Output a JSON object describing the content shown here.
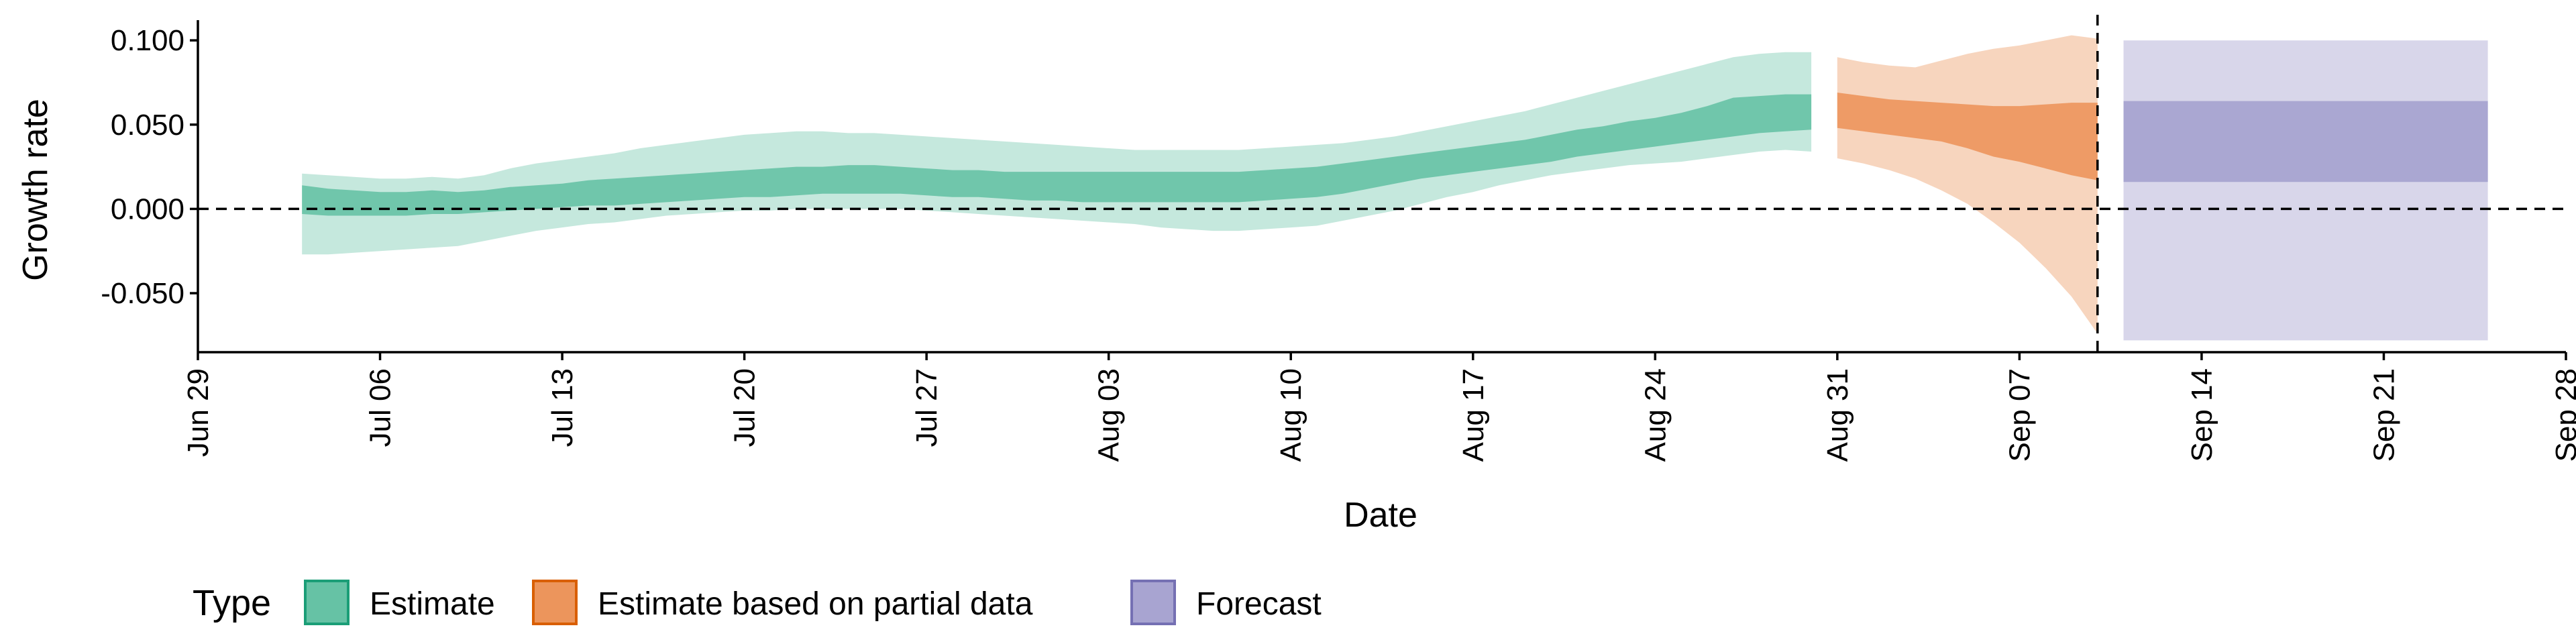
{
  "chart_data": {
    "type": "area",
    "xlabel": "Date",
    "ylabel": "Growth rate",
    "x_axis": {
      "type": "date",
      "range": [
        "2020-06-29",
        "2020-09-28"
      ],
      "ticks": [
        {
          "date": "2020-06-29",
          "label": "Jun 29"
        },
        {
          "date": "2020-07-06",
          "label": "Jul 06"
        },
        {
          "date": "2020-07-13",
          "label": "Jul 13"
        },
        {
          "date": "2020-07-20",
          "label": "Jul 20"
        },
        {
          "date": "2020-07-27",
          "label": "Jul 27"
        },
        {
          "date": "2020-08-03",
          "label": "Aug 03"
        },
        {
          "date": "2020-08-10",
          "label": "Aug 10"
        },
        {
          "date": "2020-08-17",
          "label": "Aug 17"
        },
        {
          "date": "2020-08-24",
          "label": "Aug 24"
        },
        {
          "date": "2020-08-31",
          "label": "Aug 31"
        },
        {
          "date": "2020-09-07",
          "label": "Sep 07"
        },
        {
          "date": "2020-09-14",
          "label": "Sep 14"
        },
        {
          "date": "2020-09-21",
          "label": "Sep 21"
        },
        {
          "date": "2020-09-28",
          "label": "Sep 28"
        }
      ]
    },
    "y_axis": {
      "range": [
        -0.085,
        0.112
      ],
      "ticks": [
        {
          "value": -0.05,
          "label": "-0.050"
        },
        {
          "value": 0.0,
          "label": "0.000"
        },
        {
          "value": 0.05,
          "label": "0.050"
        },
        {
          "value": 0.1,
          "label": "0.100"
        }
      ]
    },
    "reference_lines": [
      {
        "orientation": "horizontal",
        "value": 0.0,
        "style": "dashed"
      },
      {
        "orientation": "vertical",
        "date": "2020-09-10",
        "style": "dashed"
      }
    ],
    "legend": {
      "title": "Type",
      "position": "bottom",
      "entries": [
        {
          "label": "Estimate",
          "color": "#66c2a5",
          "border": "#1b9e77"
        },
        {
          "label": "Estimate based on partial data",
          "color": "#ec955c",
          "border": "#d95f02"
        },
        {
          "label": "Forecast",
          "color": "#a8a4d1",
          "border": "#7570b3"
        }
      ]
    },
    "series": [
      {
        "name": "Estimate",
        "color": "#66c2a5",
        "outer_alpha": 0.38,
        "inner_alpha": 0.9,
        "points": [
          {
            "date": "2020-07-03",
            "lo90": -0.027,
            "lo50": -0.003,
            "hi50": 0.014,
            "hi90": 0.021
          },
          {
            "date": "2020-07-04",
            "lo90": -0.027,
            "lo50": -0.004,
            "hi50": 0.012,
            "hi90": 0.02
          },
          {
            "date": "2020-07-05",
            "lo90": -0.026,
            "lo50": -0.004,
            "hi50": 0.011,
            "hi90": 0.019
          },
          {
            "date": "2020-07-06",
            "lo90": -0.025,
            "lo50": -0.004,
            "hi50": 0.01,
            "hi90": 0.018
          },
          {
            "date": "2020-07-07",
            "lo90": -0.024,
            "lo50": -0.004,
            "hi50": 0.01,
            "hi90": 0.018
          },
          {
            "date": "2020-07-08",
            "lo90": -0.023,
            "lo50": -0.003,
            "hi50": 0.011,
            "hi90": 0.019
          },
          {
            "date": "2020-07-09",
            "lo90": -0.022,
            "lo50": -0.003,
            "hi50": 0.01,
            "hi90": 0.018
          },
          {
            "date": "2020-07-10",
            "lo90": -0.019,
            "lo50": -0.002,
            "hi50": 0.011,
            "hi90": 0.02
          },
          {
            "date": "2020-07-11",
            "lo90": -0.016,
            "lo50": -0.001,
            "hi50": 0.013,
            "hi90": 0.024
          },
          {
            "date": "2020-07-12",
            "lo90": -0.013,
            "lo50": 0.0,
            "hi50": 0.014,
            "hi90": 0.027
          },
          {
            "date": "2020-07-13",
            "lo90": -0.011,
            "lo50": 0.001,
            "hi50": 0.015,
            "hi90": 0.029
          },
          {
            "date": "2020-07-14",
            "lo90": -0.009,
            "lo50": 0.002,
            "hi50": 0.017,
            "hi90": 0.031
          },
          {
            "date": "2020-07-15",
            "lo90": -0.008,
            "lo50": 0.002,
            "hi50": 0.018,
            "hi90": 0.033
          },
          {
            "date": "2020-07-16",
            "lo90": -0.006,
            "lo50": 0.003,
            "hi50": 0.019,
            "hi90": 0.036
          },
          {
            "date": "2020-07-17",
            "lo90": -0.004,
            "lo50": 0.004,
            "hi50": 0.02,
            "hi90": 0.038
          },
          {
            "date": "2020-07-18",
            "lo90": -0.003,
            "lo50": 0.005,
            "hi50": 0.021,
            "hi90": 0.04
          },
          {
            "date": "2020-07-19",
            "lo90": -0.002,
            "lo50": 0.006,
            "hi50": 0.022,
            "hi90": 0.042
          },
          {
            "date": "2020-07-20",
            "lo90": -0.001,
            "lo50": 0.007,
            "hi50": 0.023,
            "hi90": 0.044
          },
          {
            "date": "2020-07-21",
            "lo90": -0.001,
            "lo50": 0.007,
            "hi50": 0.024,
            "hi90": 0.045
          },
          {
            "date": "2020-07-22",
            "lo90": 0.0,
            "lo50": 0.008,
            "hi50": 0.025,
            "hi90": 0.046
          },
          {
            "date": "2020-07-23",
            "lo90": 0.0,
            "lo50": 0.009,
            "hi50": 0.025,
            "hi90": 0.046
          },
          {
            "date": "2020-07-24",
            "lo90": 0.0,
            "lo50": 0.009,
            "hi50": 0.026,
            "hi90": 0.045
          },
          {
            "date": "2020-07-25",
            "lo90": 0.0,
            "lo50": 0.009,
            "hi50": 0.026,
            "hi90": 0.045
          },
          {
            "date": "2020-07-26",
            "lo90": 0.0,
            "lo50": 0.009,
            "hi50": 0.025,
            "hi90": 0.044
          },
          {
            "date": "2020-07-27",
            "lo90": -0.001,
            "lo50": 0.008,
            "hi50": 0.024,
            "hi90": 0.043
          },
          {
            "date": "2020-07-28",
            "lo90": -0.002,
            "lo50": 0.007,
            "hi50": 0.023,
            "hi90": 0.042
          },
          {
            "date": "2020-07-29",
            "lo90": -0.003,
            "lo50": 0.007,
            "hi50": 0.023,
            "hi90": 0.041
          },
          {
            "date": "2020-07-30",
            "lo90": -0.004,
            "lo50": 0.006,
            "hi50": 0.022,
            "hi90": 0.04
          },
          {
            "date": "2020-07-31",
            "lo90": -0.005,
            "lo50": 0.005,
            "hi50": 0.022,
            "hi90": 0.039
          },
          {
            "date": "2020-08-01",
            "lo90": -0.006,
            "lo50": 0.005,
            "hi50": 0.022,
            "hi90": 0.038
          },
          {
            "date": "2020-08-02",
            "lo90": -0.007,
            "lo50": 0.004,
            "hi50": 0.022,
            "hi90": 0.037
          },
          {
            "date": "2020-08-03",
            "lo90": -0.008,
            "lo50": 0.004,
            "hi50": 0.022,
            "hi90": 0.036
          },
          {
            "date": "2020-08-04",
            "lo90": -0.009,
            "lo50": 0.004,
            "hi50": 0.022,
            "hi90": 0.035
          },
          {
            "date": "2020-08-05",
            "lo90": -0.011,
            "lo50": 0.004,
            "hi50": 0.022,
            "hi90": 0.035
          },
          {
            "date": "2020-08-06",
            "lo90": -0.012,
            "lo50": 0.004,
            "hi50": 0.022,
            "hi90": 0.035
          },
          {
            "date": "2020-08-07",
            "lo90": -0.013,
            "lo50": 0.004,
            "hi50": 0.022,
            "hi90": 0.035
          },
          {
            "date": "2020-08-08",
            "lo90": -0.013,
            "lo50": 0.004,
            "hi50": 0.022,
            "hi90": 0.035
          },
          {
            "date": "2020-08-09",
            "lo90": -0.012,
            "lo50": 0.005,
            "hi50": 0.023,
            "hi90": 0.036
          },
          {
            "date": "2020-08-10",
            "lo90": -0.011,
            "lo50": 0.006,
            "hi50": 0.024,
            "hi90": 0.037
          },
          {
            "date": "2020-08-11",
            "lo90": -0.01,
            "lo50": 0.007,
            "hi50": 0.025,
            "hi90": 0.038
          },
          {
            "date": "2020-08-12",
            "lo90": -0.007,
            "lo50": 0.009,
            "hi50": 0.027,
            "hi90": 0.039
          },
          {
            "date": "2020-08-13",
            "lo90": -0.004,
            "lo50": 0.012,
            "hi50": 0.029,
            "hi90": 0.041
          },
          {
            "date": "2020-08-14",
            "lo90": -0.001,
            "lo50": 0.015,
            "hi50": 0.031,
            "hi90": 0.043
          },
          {
            "date": "2020-08-15",
            "lo90": 0.003,
            "lo50": 0.018,
            "hi50": 0.033,
            "hi90": 0.046
          },
          {
            "date": "2020-08-16",
            "lo90": 0.007,
            "lo50": 0.02,
            "hi50": 0.035,
            "hi90": 0.049
          },
          {
            "date": "2020-08-17",
            "lo90": 0.01,
            "lo50": 0.022,
            "hi50": 0.037,
            "hi90": 0.052
          },
          {
            "date": "2020-08-18",
            "lo90": 0.014,
            "lo50": 0.024,
            "hi50": 0.039,
            "hi90": 0.055
          },
          {
            "date": "2020-08-19",
            "lo90": 0.017,
            "lo50": 0.026,
            "hi50": 0.041,
            "hi90": 0.058
          },
          {
            "date": "2020-08-20",
            "lo90": 0.02,
            "lo50": 0.028,
            "hi50": 0.044,
            "hi90": 0.062
          },
          {
            "date": "2020-08-21",
            "lo90": 0.022,
            "lo50": 0.031,
            "hi50": 0.047,
            "hi90": 0.066
          },
          {
            "date": "2020-08-22",
            "lo90": 0.024,
            "lo50": 0.033,
            "hi50": 0.049,
            "hi90": 0.07
          },
          {
            "date": "2020-08-23",
            "lo90": 0.026,
            "lo50": 0.035,
            "hi50": 0.052,
            "hi90": 0.074
          },
          {
            "date": "2020-08-24",
            "lo90": 0.027,
            "lo50": 0.037,
            "hi50": 0.054,
            "hi90": 0.078
          },
          {
            "date": "2020-08-25",
            "lo90": 0.028,
            "lo50": 0.039,
            "hi50": 0.057,
            "hi90": 0.082
          },
          {
            "date": "2020-08-26",
            "lo90": 0.03,
            "lo50": 0.041,
            "hi50": 0.061,
            "hi90": 0.086
          },
          {
            "date": "2020-08-27",
            "lo90": 0.032,
            "lo50": 0.043,
            "hi50": 0.066,
            "hi90": 0.09
          },
          {
            "date": "2020-08-28",
            "lo90": 0.034,
            "lo50": 0.045,
            "hi50": 0.067,
            "hi90": 0.092
          },
          {
            "date": "2020-08-29",
            "lo90": 0.035,
            "lo50": 0.046,
            "hi50": 0.068,
            "hi90": 0.093
          },
          {
            "date": "2020-08-30",
            "lo90": 0.034,
            "lo50": 0.047,
            "hi50": 0.068,
            "hi90": 0.093
          }
        ]
      },
      {
        "name": "Estimate based on partial data",
        "color": "#ec955c",
        "outer_alpha": 0.4,
        "inner_alpha": 0.9,
        "points": [
          {
            "date": "2020-08-31",
            "lo90": 0.03,
            "lo50": 0.048,
            "hi50": 0.069,
            "hi90": 0.09
          },
          {
            "date": "2020-09-01",
            "lo90": 0.027,
            "lo50": 0.046,
            "hi50": 0.067,
            "hi90": 0.087
          },
          {
            "date": "2020-09-02",
            "lo90": 0.023,
            "lo50": 0.044,
            "hi50": 0.065,
            "hi90": 0.085
          },
          {
            "date": "2020-09-03",
            "lo90": 0.018,
            "lo50": 0.042,
            "hi50": 0.064,
            "hi90": 0.084
          },
          {
            "date": "2020-09-04",
            "lo90": 0.011,
            "lo50": 0.04,
            "hi50": 0.063,
            "hi90": 0.088
          },
          {
            "date": "2020-09-05",
            "lo90": 0.003,
            "lo50": 0.036,
            "hi50": 0.062,
            "hi90": 0.092
          },
          {
            "date": "2020-09-06",
            "lo90": -0.008,
            "lo50": 0.031,
            "hi50": 0.061,
            "hi90": 0.095
          },
          {
            "date": "2020-09-07",
            "lo90": -0.02,
            "lo50": 0.028,
            "hi50": 0.061,
            "hi90": 0.097
          },
          {
            "date": "2020-09-08",
            "lo90": -0.035,
            "lo50": 0.024,
            "hi50": 0.062,
            "hi90": 0.1
          },
          {
            "date": "2020-09-09",
            "lo90": -0.052,
            "lo50": 0.02,
            "hi50": 0.063,
            "hi90": 0.103
          },
          {
            "date": "2020-09-10",
            "lo90": -0.074,
            "lo50": 0.017,
            "hi50": 0.063,
            "hi90": 0.101
          }
        ]
      },
      {
        "name": "Forecast",
        "color": "#a8a4d1",
        "outer_alpha": 0.45,
        "inner_alpha": 0.95,
        "points": [
          {
            "date": "2020-09-11",
            "lo90": -0.078,
            "lo50": 0.016,
            "hi50": 0.064,
            "hi90": 0.1
          },
          {
            "date": "2020-09-25",
            "lo90": -0.078,
            "lo50": 0.016,
            "hi50": 0.064,
            "hi90": 0.1
          }
        ]
      }
    ]
  }
}
